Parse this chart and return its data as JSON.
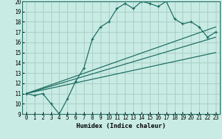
{
  "title": "",
  "xlabel": "Humidex (Indice chaleur)",
  "xlim": [
    -0.5,
    23.5
  ],
  "ylim": [
    9,
    20
  ],
  "yticks": [
    9,
    10,
    11,
    12,
    13,
    14,
    15,
    16,
    17,
    18,
    19,
    20
  ],
  "xticks": [
    0,
    1,
    2,
    3,
    4,
    5,
    6,
    7,
    8,
    9,
    10,
    11,
    12,
    13,
    14,
    15,
    16,
    17,
    18,
    19,
    20,
    21,
    22,
    23
  ],
  "bg_color": "#c8ebe3",
  "grid_color": "#a8cfc7",
  "line_color": "#1a6b60",
  "line1_x": [
    0,
    1,
    2,
    3,
    4,
    5,
    6,
    7,
    8,
    9,
    10,
    11,
    12,
    13,
    14,
    15,
    16,
    17,
    18,
    19,
    20,
    21,
    22,
    23
  ],
  "line1_y": [
    11.0,
    10.8,
    11.0,
    10.0,
    9.0,
    10.5,
    12.2,
    13.5,
    16.3,
    17.5,
    18.0,
    19.3,
    19.8,
    19.3,
    20.0,
    19.8,
    19.5,
    20.0,
    18.3,
    17.8,
    18.0,
    17.5,
    16.5,
    17.0
  ],
  "line2_x": [
    0,
    23
  ],
  "line2_y": [
    11.0,
    16.5
  ],
  "line3_x": [
    0,
    23
  ],
  "line3_y": [
    11.0,
    15.0
  ],
  "line4_x": [
    0,
    23
  ],
  "line4_y": [
    11.0,
    17.5
  ],
  "tick_fontsize": 5.5,
  "axis_label_fontsize": 6.5
}
